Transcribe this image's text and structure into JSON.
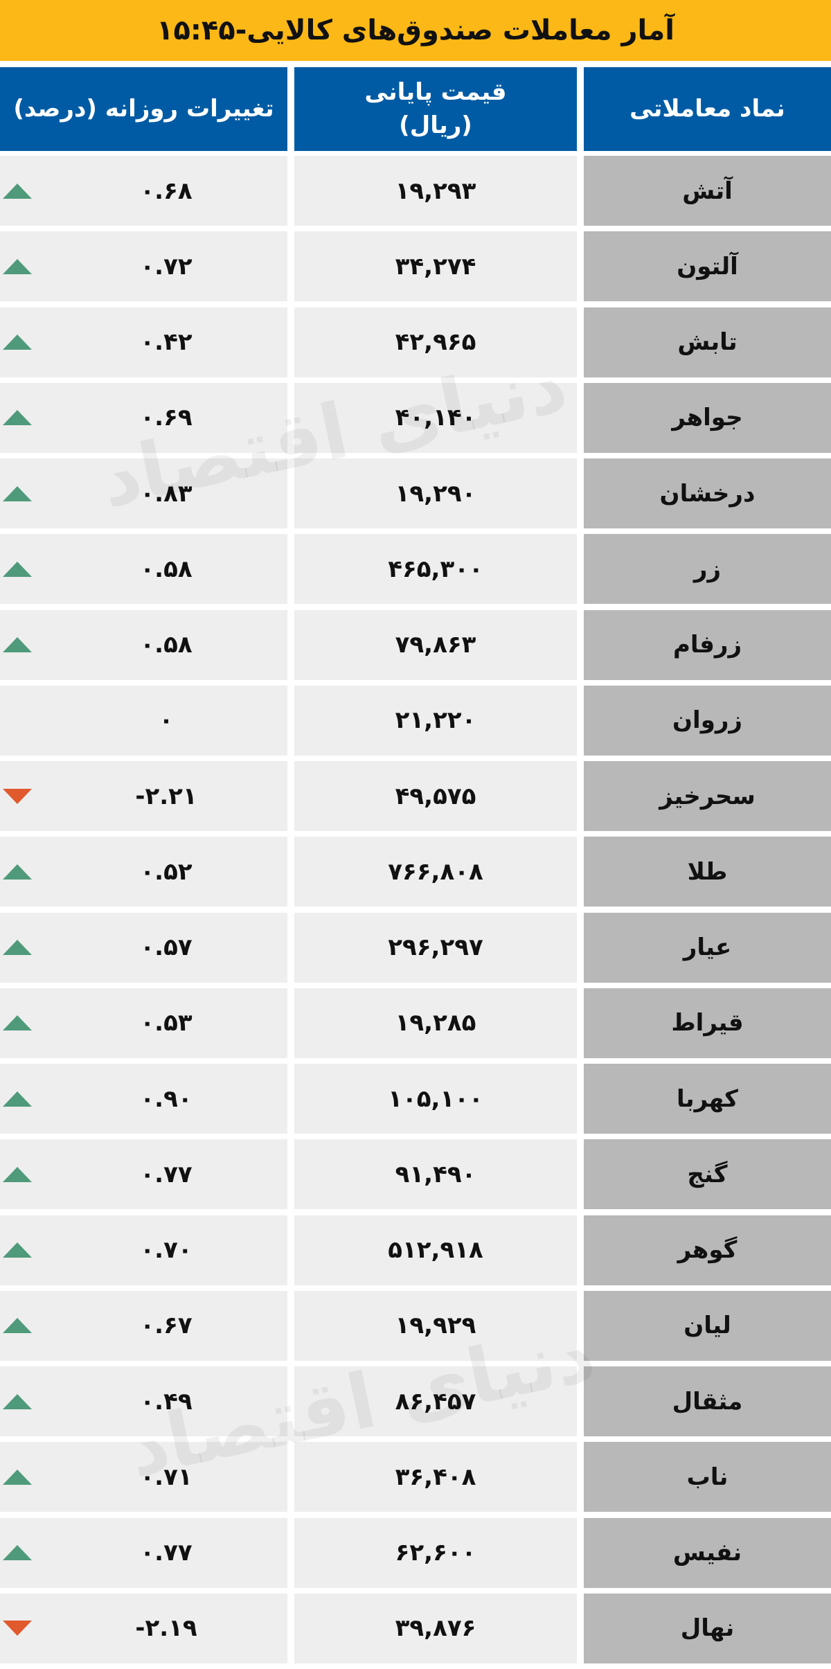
{
  "title": "آمار معاملات صندوق‌های کالایی-۱۵:۴۵",
  "headers": {
    "symbol": "نماد معاملاتی",
    "price": "قیمت پایانی (ریال)",
    "change": "تغییرات روزانه  (درصد)"
  },
  "watermark": "دنیای اقتصاد",
  "colors": {
    "title_bg": "#fbb816",
    "header_bg": "#005ba4",
    "up": "#4f9a7a",
    "down": "#e05a2e"
  },
  "rows": [
    {
      "symbol": "آتش",
      "price": "۱۹,۲۹۳",
      "change": "۰.۶۸",
      "trend": "up"
    },
    {
      "symbol": "آلتون",
      "price": "۳۴,۲۷۴",
      "change": "۰.۷۲",
      "trend": "up"
    },
    {
      "symbol": "تابش",
      "price": "۴۲,۹۶۵",
      "change": "۰.۴۲",
      "trend": "up"
    },
    {
      "symbol": "جواهر",
      "price": "۴۰,۱۴۰",
      "change": "۰.۶۹",
      "trend": "up"
    },
    {
      "symbol": "درخشان",
      "price": "۱۹,۲۹۰",
      "change": "۰.۸۳",
      "trend": "up"
    },
    {
      "symbol": "زر",
      "price": "۴۶۵,۳۰۰",
      "change": "۰.۵۸",
      "trend": "up"
    },
    {
      "symbol": "زرفام",
      "price": "۷۹,۸۶۳",
      "change": "۰.۵۸",
      "trend": "up"
    },
    {
      "symbol": "زروان",
      "price": "۲۱,۲۲۰",
      "change": "۰",
      "trend": "none"
    },
    {
      "symbol": "سحرخیز",
      "price": "۴۹,۵۷۵",
      "change": "-۲.۲۱",
      "trend": "down"
    },
    {
      "symbol": "طلا",
      "price": "۷۶۶,۸۰۸",
      "change": "۰.۵۲",
      "trend": "up"
    },
    {
      "symbol": "عیار",
      "price": "۲۹۶,۲۹۷",
      "change": "۰.۵۷",
      "trend": "up"
    },
    {
      "symbol": "قیراط",
      "price": "۱۹,۲۸۵",
      "change": "۰.۵۳",
      "trend": "up"
    },
    {
      "symbol": "کهربا",
      "price": "۱۰۵,۱۰۰",
      "change": "۰.۹۰",
      "trend": "up"
    },
    {
      "symbol": "گنج",
      "price": "۹۱,۴۹۰",
      "change": "۰.۷۷",
      "trend": "up"
    },
    {
      "symbol": "گوهر",
      "price": "۵۱۲,۹۱۸",
      "change": "۰.۷۰",
      "trend": "up"
    },
    {
      "symbol": "لیان",
      "price": "۱۹,۹۲۹",
      "change": "۰.۶۷",
      "trend": "up"
    },
    {
      "symbol": "مثقال",
      "price": "۸۶,۴۵۷",
      "change": "۰.۴۹",
      "trend": "up"
    },
    {
      "symbol": "ناب",
      "price": "۳۶,۴۰۸",
      "change": "۰.۷۱",
      "trend": "up"
    },
    {
      "symbol": "نفیس",
      "price": "۶۲,۶۰۰",
      "change": "۰.۷۷",
      "trend": "up"
    },
    {
      "symbol": "نهال",
      "price": "۳۹,۸۷۶",
      "change": "-۲.۱۹",
      "trend": "down"
    }
  ]
}
